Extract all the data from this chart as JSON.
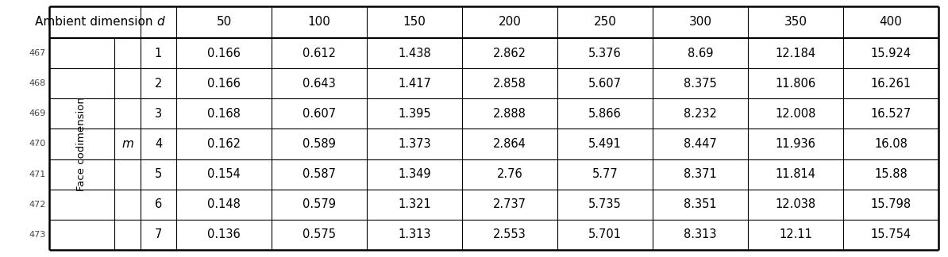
{
  "col_headers": [
    "Ambient dimension d",
    "50",
    "100",
    "150",
    "200",
    "250",
    "300",
    "350",
    "400"
  ],
  "table_data": [
    [
      "1",
      "0.166",
      "0.612",
      "1.438",
      "2.862",
      "5.376",
      "8.69",
      "12.184",
      "15.924"
    ],
    [
      "2",
      "0.166",
      "0.643",
      "1.417",
      "2.858",
      "5.607",
      "8.375",
      "11.806",
      "16.261"
    ],
    [
      "3",
      "0.168",
      "0.607",
      "1.395",
      "2.888",
      "5.866",
      "8.232",
      "12.008",
      "16.527"
    ],
    [
      "4",
      "0.162",
      "0.589",
      "1.373",
      "2.864",
      "5.491",
      "8.447",
      "11.936",
      "16.08"
    ],
    [
      "5",
      "0.154",
      "0.587",
      "1.349",
      "2.76",
      "5.77",
      "8.371",
      "11.814",
      "15.88"
    ],
    [
      "6",
      "0.148",
      "0.579",
      "1.321",
      "2.737",
      "5.735",
      "8.351",
      "12.038",
      "15.798"
    ],
    [
      "7",
      "0.136",
      "0.575",
      "1.313",
      "2.553",
      "5.701",
      "8.313",
      "12.11",
      "15.754"
    ]
  ],
  "line_numbers": [
    "467",
    "468",
    "469",
    "470",
    "471",
    "472",
    "473"
  ],
  "rotated_label": "Face codimension",
  "m_label": "m",
  "bg_color": "#ffffff"
}
